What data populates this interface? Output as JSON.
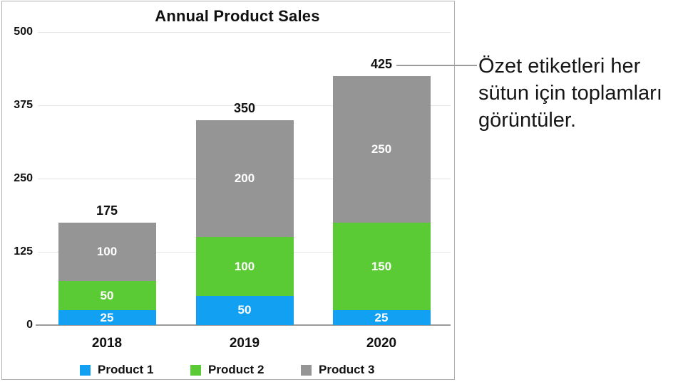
{
  "callout": {
    "text": "Özet etiketleri her sütun için toplamları görüntüler.",
    "lines": [
      "Özet etiketleri her",
      "sütun için toplamları",
      "görüntüler."
    ]
  },
  "colors": {
    "product1_blue": "#12A0F2",
    "product2_green": "#5BCB35",
    "product3_gray": "#959595",
    "gridline": "#e4e4e4",
    "axis_line": "#9b9b9b",
    "card_border": "#b0b0b0",
    "connector_line": "#9b9b9b",
    "text_black": "#111111",
    "segment_label_white": "#ffffff"
  },
  "chart_data": {
    "type": "bar",
    "stacked": true,
    "title": "Annual Product Sales",
    "categories": [
      "2018",
      "2019",
      "2020"
    ],
    "series": [
      {
        "name": "Product 1",
        "color": "#12A0F2",
        "values": [
          25,
          50,
          25
        ]
      },
      {
        "name": "Product 2",
        "color": "#5BCB35",
        "values": [
          50,
          100,
          150
        ]
      },
      {
        "name": "Product 3",
        "color": "#959595",
        "values": [
          100,
          200,
          250
        ]
      }
    ],
    "totals": [
      175,
      350,
      425
    ],
    "y_ticks": [
      0,
      125,
      250,
      375,
      500
    ],
    "ylim": [
      0,
      500
    ],
    "xlabel": "",
    "ylabel": "",
    "grid": true,
    "legend_position": "bottom",
    "summary_labels_shown": true
  }
}
